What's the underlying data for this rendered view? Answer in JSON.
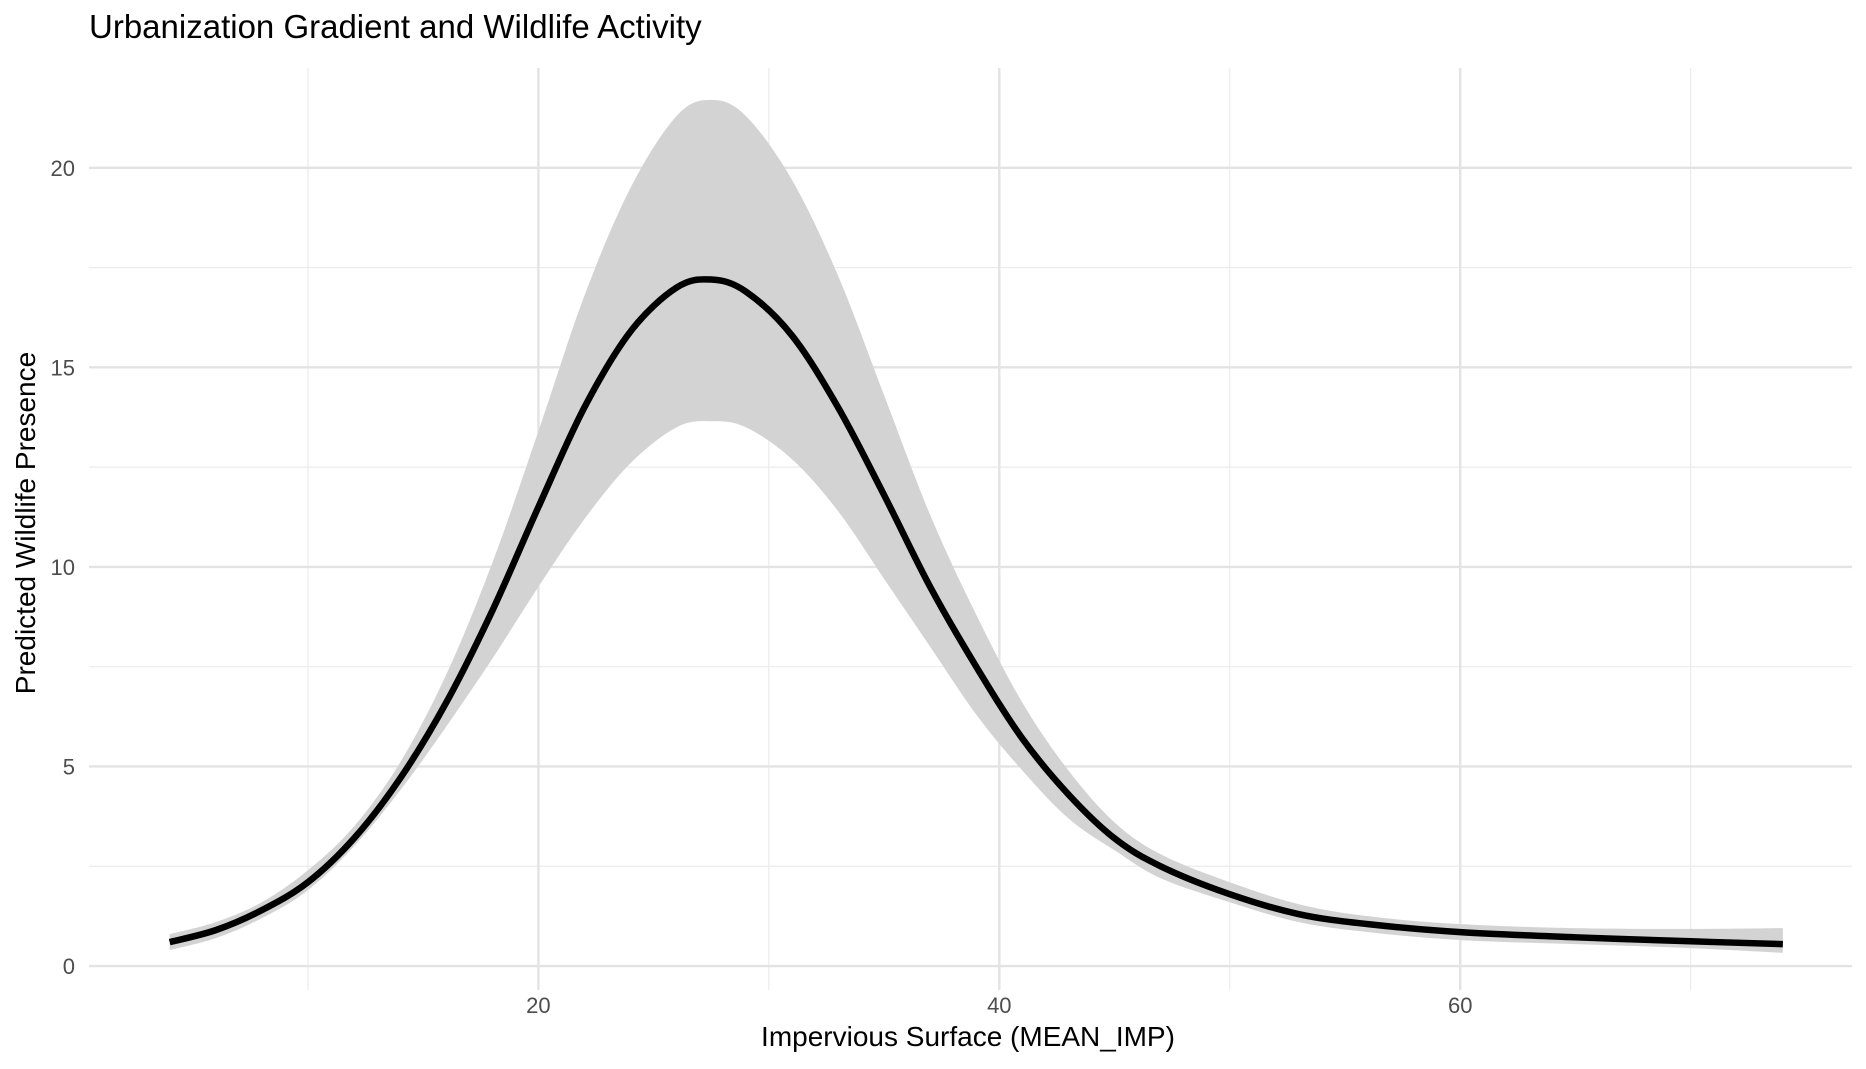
{
  "chart_data": {
    "type": "line",
    "title": "Urbanization Gradient and Wildlife Activity",
    "xlabel": "Impervious Surface (MEAN_IMP)",
    "ylabel": "Predicted Wildlife Presence",
    "xlim": [
      0.5,
      77
    ],
    "ylim": [
      -0.6,
      22.5
    ],
    "x_ticks": [
      20,
      40,
      60
    ],
    "y_ticks": [
      0,
      5,
      10,
      15,
      20
    ],
    "x_minor_grid": [
      10,
      30,
      50,
      70
    ],
    "y_minor_grid": [
      2.5,
      7.5,
      12.5,
      17.5
    ],
    "grid": true,
    "legend": "none",
    "line_color": "#000000",
    "ribbon_color": "#d3d3d3",
    "series": [
      {
        "x": [
          4,
          6,
          8,
          10,
          12,
          14,
          16,
          18,
          20,
          22,
          24,
          26,
          27.5,
          29,
          31,
          33,
          35,
          37,
          39,
          41,
          43,
          45,
          47,
          50,
          53,
          56,
          60,
          65,
          70,
          74
        ],
        "y": [
          0.6,
          0.9,
          1.4,
          2.1,
          3.2,
          4.7,
          6.6,
          8.9,
          11.5,
          14.0,
          15.9,
          17.0,
          17.2,
          16.9,
          15.8,
          14.0,
          11.8,
          9.5,
          7.5,
          5.7,
          4.3,
          3.2,
          2.5,
          1.8,
          1.3,
          1.05,
          0.85,
          0.72,
          0.62,
          0.55
        ],
        "ymin": [
          0.4,
          0.7,
          1.2,
          1.9,
          3.0,
          4.4,
          6.0,
          7.7,
          9.5,
          11.2,
          12.6,
          13.5,
          13.65,
          13.5,
          12.7,
          11.4,
          9.7,
          8.0,
          6.3,
          4.9,
          3.7,
          2.9,
          2.2,
          1.6,
          1.1,
          0.85,
          0.65,
          0.55,
          0.45,
          0.33
        ],
        "ymax": [
          0.8,
          1.1,
          1.6,
          2.4,
          3.5,
          5.1,
          7.3,
          10.1,
          13.4,
          16.8,
          19.5,
          21.3,
          21.7,
          21.3,
          19.7,
          17.3,
          14.3,
          11.3,
          8.8,
          6.6,
          4.9,
          3.6,
          2.8,
          2.1,
          1.55,
          1.25,
          1.05,
          0.95,
          0.93,
          0.95
        ]
      }
    ]
  }
}
